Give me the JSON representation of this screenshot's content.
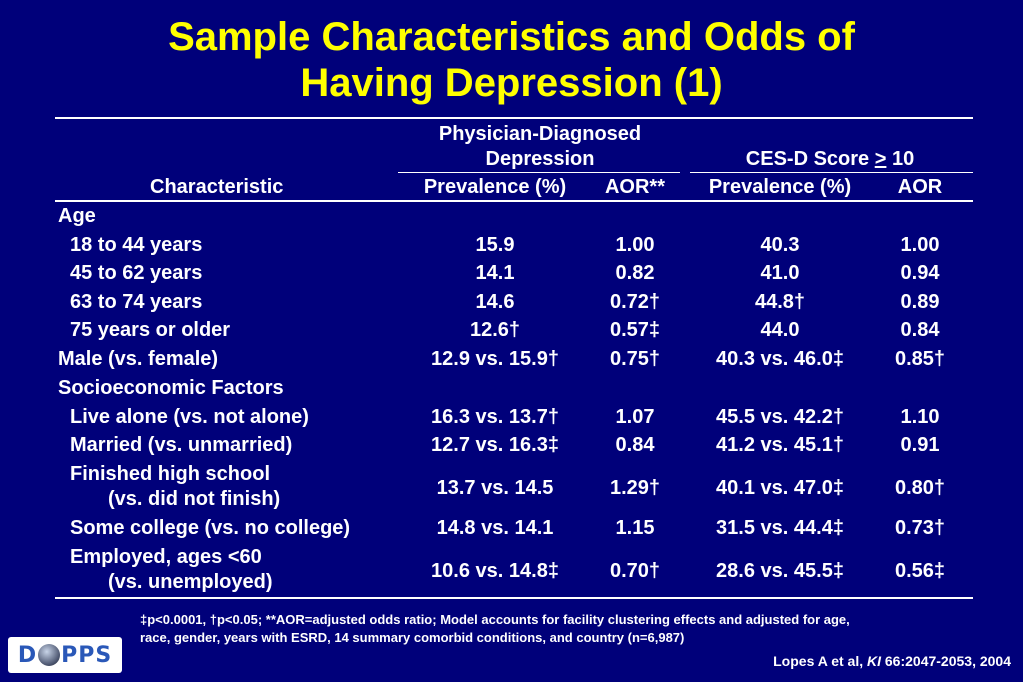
{
  "title": {
    "line1": "Sample Characteristics and Odds of",
    "line2": "Having Depression (1)"
  },
  "table": {
    "group_headers": {
      "physician_line1": "Physician-Diagnosed",
      "physician_line2": "Depression",
      "cesd": "CES-D Score > 10"
    },
    "column_headers": {
      "characteristic": "Characteristic",
      "prev1": "Prevalence (%)",
      "aor1": "AOR**",
      "prev2": "Prevalence (%)",
      "aor2": "AOR"
    },
    "rows": [
      {
        "label": "Age",
        "prev1": "",
        "aor1": "",
        "prev2": "",
        "aor2": ""
      },
      {
        "label": "18 to 44 years",
        "prev1": "15.9",
        "aor1": "1.00",
        "prev2": "40.3",
        "aor2": "1.00"
      },
      {
        "label": "45 to 62 years",
        "prev1": "14.1",
        "aor1": "0.82",
        "prev2": "41.0",
        "aor2": "0.94"
      },
      {
        "label": "63 to 74 years",
        "prev1": "14.6",
        "aor1": "0.72†",
        "prev2": "44.8†",
        "aor2": "0.89"
      },
      {
        "label": "75 years or older",
        "prev1": "12.6†",
        "aor1": "0.57‡",
        "prev2": "44.0",
        "aor2": "0.84"
      },
      {
        "label": "Male (vs. female)",
        "prev1": "12.9 vs. 15.9†",
        "aor1": "0.75†",
        "prev2": "40.3 vs. 46.0‡",
        "aor2": "0.85†"
      },
      {
        "label": "Socioeconomic Factors",
        "prev1": "",
        "aor1": "",
        "prev2": "",
        "aor2": ""
      },
      {
        "label": "Live alone (vs. not alone)",
        "prev1": "16.3 vs. 13.7†",
        "aor1": "1.07",
        "prev2": "45.5 vs. 42.2†",
        "aor2": "1.10"
      },
      {
        "label": "Married (vs. unmarried)",
        "prev1": "12.7 vs. 16.3‡",
        "aor1": "0.84",
        "prev2": "41.2 vs. 45.1†",
        "aor2": "0.91"
      },
      {
        "label": "Finished high school",
        "label2": "(vs. did not finish)",
        "prev1": "13.7 vs. 14.5",
        "aor1": "1.29†",
        "prev2": "40.1 vs. 47.0‡",
        "aor2": "0.80†"
      },
      {
        "label": "Some college (vs. no college)",
        "prev1": "14.8 vs. 14.1",
        "aor1": "1.15",
        "prev2": "31.5 vs. 44.4‡",
        "aor2": "0.73†"
      },
      {
        "label": "Employed, ages <60",
        "label2": "(vs. unemployed)",
        "prev1": "10.6 vs. 14.8‡",
        "aor1": "0.70†",
        "prev2": "28.6 vs. 45.5‡",
        "aor2": "0.56‡"
      }
    ]
  },
  "footnote": {
    "line1": "‡p<0.0001, †p<0.05; **AOR=adjusted odds ratio; Model accounts for facility clustering effects and adjusted for age,",
    "line2": "race, gender, years with ESRD, 14 summary comorbid conditions, and country (n=6,987)"
  },
  "citation": {
    "pre": "Lopes A et al, ",
    "journal": "KI",
    "post": " 66:2047-2053, 2004"
  },
  "logo": {
    "left": "D",
    "right": "PPS"
  },
  "colors": {
    "background": "#00007a",
    "title": "#ffff00",
    "text": "#ffffff"
  }
}
